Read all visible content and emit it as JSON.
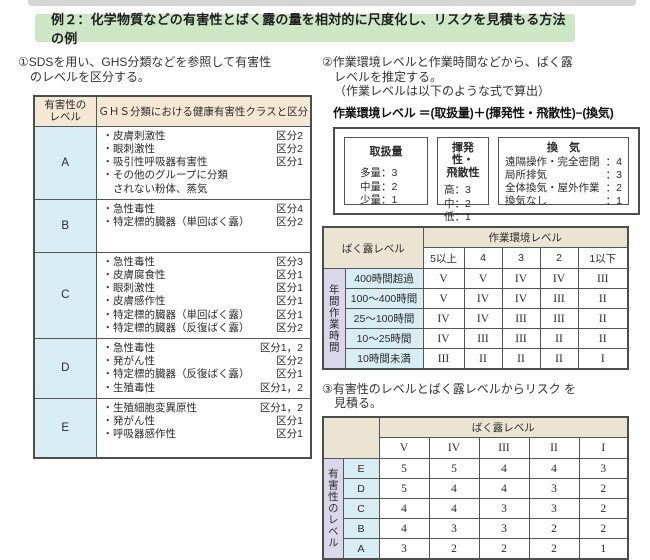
{
  "page_title": "例２：化学物質などの有害性とばく露の量を相対的に尺度化し、リスクを見積もる方法の例",
  "colors": {
    "banner_green": "#cde6c6",
    "header_tan": "#f4e8d5",
    "header_beige": "#ece4d2",
    "level_blue": "#d8ecf4",
    "group_purple": "#dbd7ea",
    "border_gray": "#4d4d4d"
  },
  "steps": {
    "step1_line1": "①SDSを用い、GHS分類などを参照して有害性",
    "step1_line2": "のレベルを区分する。",
    "step2_line1": "②作業環境レベルと作業時間などから、ばく露",
    "step2_line2": "レベルを推定する。",
    "step2_line3": "（作業レベルは以下のような式で算出）",
    "step3_line1": "③有害性のレベルとばく露レベルからリスク を",
    "step3_line2": "見積る。"
  },
  "formula": "作業環境レベル ＝(取扱量)＋(揮発性・飛散性)−(換気)",
  "hazard_table": {
    "col1_header": "有害性の\nレベル",
    "col2_header": "ＧＨＳ分類における健康有害性クラスと区分",
    "rows": [
      {
        "level": "A",
        "items": [
          {
            "text": "・皮膚刺激性",
            "kubun": "区分2"
          },
          {
            "text": "・眼刺激性",
            "kubun": "区分2"
          },
          {
            "text": "・吸引性呼吸器有害性",
            "kubun": "区分1"
          },
          {
            "text": "・その他のグループに分類",
            "kubun": ""
          },
          {
            "text": "　されない粉体、蒸気",
            "kubun": ""
          }
        ]
      },
      {
        "level": "B",
        "items": [
          {
            "text": "・急性毒性",
            "kubun": "区分4"
          },
          {
            "text": "・特定標的臓器（単回ばく露）",
            "kubun": "区分2"
          }
        ]
      },
      {
        "level": "C",
        "items": [
          {
            "text": "・急性毒性",
            "kubun": "区分3"
          },
          {
            "text": "・皮膚腐食性",
            "kubun": "区分1"
          },
          {
            "text": "・眼刺激性",
            "kubun": "区分1"
          },
          {
            "text": "・皮膚感作性",
            "kubun": "区分1"
          },
          {
            "text": "・特定標的臓器（単回ばく露）",
            "kubun": "区分1"
          },
          {
            "text": "・特定標的臓器（反復ばく露）",
            "kubun": "区分2"
          }
        ]
      },
      {
        "level": "D",
        "items": [
          {
            "text": "・急性毒性",
            "kubun": "区分1，2"
          },
          {
            "text": "・発がん性",
            "kubun": "区分2"
          },
          {
            "text": "・特定標的臓器（反復ばく露）",
            "kubun": "区分1"
          },
          {
            "text": "・生殖毒性",
            "kubun": "区分1，2"
          }
        ]
      },
      {
        "level": "E",
        "items": [
          {
            "text": "・生殖細胞変異原性",
            "kubun": "区分1，2"
          },
          {
            "text": "・発がん性",
            "kubun": "区分1"
          },
          {
            "text": "・呼吸器感作性",
            "kubun": "区分1"
          }
        ]
      }
    ]
  },
  "factor_box": {
    "handling": {
      "title": "取扱量",
      "items": [
        {
          "label": "多量",
          "value": "3"
        },
        {
          "label": "中量",
          "value": "2"
        },
        {
          "label": "少量",
          "value": "1"
        }
      ]
    },
    "volatility": {
      "title": "揮発性・\n飛散性",
      "items": [
        {
          "label": "高",
          "value": "3"
        },
        {
          "label": "中",
          "value": "2"
        },
        {
          "label": "低",
          "value": "1"
        }
      ]
    },
    "ventilation": {
      "title": "換　気",
      "items": [
        {
          "label": "遠隔操作・完全密閉",
          "value": "4"
        },
        {
          "label": "局所排気",
          "value": "3"
        },
        {
          "label": "全体換気・屋外作業",
          "value": "2"
        },
        {
          "label": "換気なし",
          "value": "1"
        }
      ]
    }
  },
  "exposure_table": {
    "corner_header": "ばく露レベル",
    "col_group_header": "作業環境レベル",
    "col_headers": [
      "5以上",
      "4",
      "3",
      "2",
      "1以下"
    ],
    "row_group_header": "年間作業時間",
    "rows": [
      {
        "label": "400時間超過",
        "values": [
          "V",
          "V",
          "IV",
          "IV",
          "III"
        ]
      },
      {
        "label": "100〜400時間",
        "values": [
          "V",
          "IV",
          "IV",
          "III",
          "II"
        ]
      },
      {
        "label": "25〜100時間",
        "values": [
          "IV",
          "IV",
          "III",
          "III",
          "II"
        ]
      },
      {
        "label": "10〜25時間",
        "values": [
          "IV",
          "III",
          "III",
          "II",
          "II"
        ]
      },
      {
        "label": "10時間未満",
        "values": [
          "III",
          "II",
          "II",
          "II",
          "I"
        ]
      }
    ]
  },
  "risk_table": {
    "col_group_header": "ばく露レベル",
    "col_headers": [
      "V",
      "IV",
      "III",
      "II",
      "I"
    ],
    "row_group_header": "有害性のレベル",
    "rows": [
      {
        "level": "E",
        "values": [
          "5",
          "5",
          "4",
          "4",
          "3"
        ]
      },
      {
        "level": "D",
        "values": [
          "5",
          "4",
          "4",
          "3",
          "2"
        ]
      },
      {
        "level": "C",
        "values": [
          "4",
          "4",
          "3",
          "3",
          "2"
        ]
      },
      {
        "level": "B",
        "values": [
          "4",
          "3",
          "3",
          "2",
          "2"
        ]
      },
      {
        "level": "A",
        "values": [
          "3",
          "2",
          "2",
          "2",
          "1"
        ]
      }
    ]
  }
}
